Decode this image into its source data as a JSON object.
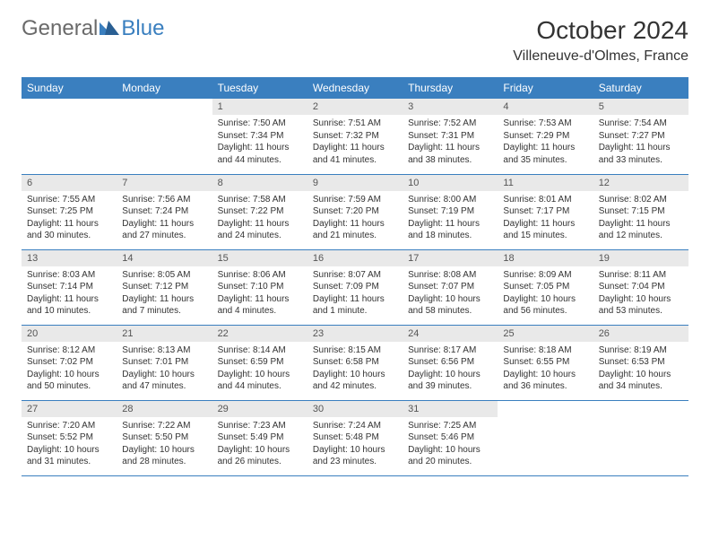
{
  "brand": {
    "part1": "General",
    "part2": "Blue"
  },
  "title": "October 2024",
  "location": "Villeneuve-d'Olmes, France",
  "colors": {
    "header_bg": "#3a7fbf",
    "header_text": "#ffffff",
    "daynum_bg": "#e9e9e9",
    "text": "#333333",
    "rule": "#3a7fbf"
  },
  "weekdays": [
    "Sunday",
    "Monday",
    "Tuesday",
    "Wednesday",
    "Thursday",
    "Friday",
    "Saturday"
  ],
  "lead_blanks": 2,
  "trail_blanks": 2,
  "days": [
    {
      "n": 1,
      "sr": "7:50 AM",
      "ss": "7:34 PM",
      "dl": "11 hours and 44 minutes."
    },
    {
      "n": 2,
      "sr": "7:51 AM",
      "ss": "7:32 PM",
      "dl": "11 hours and 41 minutes."
    },
    {
      "n": 3,
      "sr": "7:52 AM",
      "ss": "7:31 PM",
      "dl": "11 hours and 38 minutes."
    },
    {
      "n": 4,
      "sr": "7:53 AM",
      "ss": "7:29 PM",
      "dl": "11 hours and 35 minutes."
    },
    {
      "n": 5,
      "sr": "7:54 AM",
      "ss": "7:27 PM",
      "dl": "11 hours and 33 minutes."
    },
    {
      "n": 6,
      "sr": "7:55 AM",
      "ss": "7:25 PM",
      "dl": "11 hours and 30 minutes."
    },
    {
      "n": 7,
      "sr": "7:56 AM",
      "ss": "7:24 PM",
      "dl": "11 hours and 27 minutes."
    },
    {
      "n": 8,
      "sr": "7:58 AM",
      "ss": "7:22 PM",
      "dl": "11 hours and 24 minutes."
    },
    {
      "n": 9,
      "sr": "7:59 AM",
      "ss": "7:20 PM",
      "dl": "11 hours and 21 minutes."
    },
    {
      "n": 10,
      "sr": "8:00 AM",
      "ss": "7:19 PM",
      "dl": "11 hours and 18 minutes."
    },
    {
      "n": 11,
      "sr": "8:01 AM",
      "ss": "7:17 PM",
      "dl": "11 hours and 15 minutes."
    },
    {
      "n": 12,
      "sr": "8:02 AM",
      "ss": "7:15 PM",
      "dl": "11 hours and 12 minutes."
    },
    {
      "n": 13,
      "sr": "8:03 AM",
      "ss": "7:14 PM",
      "dl": "11 hours and 10 minutes."
    },
    {
      "n": 14,
      "sr": "8:05 AM",
      "ss": "7:12 PM",
      "dl": "11 hours and 7 minutes."
    },
    {
      "n": 15,
      "sr": "8:06 AM",
      "ss": "7:10 PM",
      "dl": "11 hours and 4 minutes."
    },
    {
      "n": 16,
      "sr": "8:07 AM",
      "ss": "7:09 PM",
      "dl": "11 hours and 1 minute."
    },
    {
      "n": 17,
      "sr": "8:08 AM",
      "ss": "7:07 PM",
      "dl": "10 hours and 58 minutes."
    },
    {
      "n": 18,
      "sr": "8:09 AM",
      "ss": "7:05 PM",
      "dl": "10 hours and 56 minutes."
    },
    {
      "n": 19,
      "sr": "8:11 AM",
      "ss": "7:04 PM",
      "dl": "10 hours and 53 minutes."
    },
    {
      "n": 20,
      "sr": "8:12 AM",
      "ss": "7:02 PM",
      "dl": "10 hours and 50 minutes."
    },
    {
      "n": 21,
      "sr": "8:13 AM",
      "ss": "7:01 PM",
      "dl": "10 hours and 47 minutes."
    },
    {
      "n": 22,
      "sr": "8:14 AM",
      "ss": "6:59 PM",
      "dl": "10 hours and 44 minutes."
    },
    {
      "n": 23,
      "sr": "8:15 AM",
      "ss": "6:58 PM",
      "dl": "10 hours and 42 minutes."
    },
    {
      "n": 24,
      "sr": "8:17 AM",
      "ss": "6:56 PM",
      "dl": "10 hours and 39 minutes."
    },
    {
      "n": 25,
      "sr": "8:18 AM",
      "ss": "6:55 PM",
      "dl": "10 hours and 36 minutes."
    },
    {
      "n": 26,
      "sr": "8:19 AM",
      "ss": "6:53 PM",
      "dl": "10 hours and 34 minutes."
    },
    {
      "n": 27,
      "sr": "7:20 AM",
      "ss": "5:52 PM",
      "dl": "10 hours and 31 minutes."
    },
    {
      "n": 28,
      "sr": "7:22 AM",
      "ss": "5:50 PM",
      "dl": "10 hours and 28 minutes."
    },
    {
      "n": 29,
      "sr": "7:23 AM",
      "ss": "5:49 PM",
      "dl": "10 hours and 26 minutes."
    },
    {
      "n": 30,
      "sr": "7:24 AM",
      "ss": "5:48 PM",
      "dl": "10 hours and 23 minutes."
    },
    {
      "n": 31,
      "sr": "7:25 AM",
      "ss": "5:46 PM",
      "dl": "10 hours and 20 minutes."
    }
  ],
  "labels": {
    "sunrise": "Sunrise:",
    "sunset": "Sunset:",
    "daylight": "Daylight:"
  }
}
